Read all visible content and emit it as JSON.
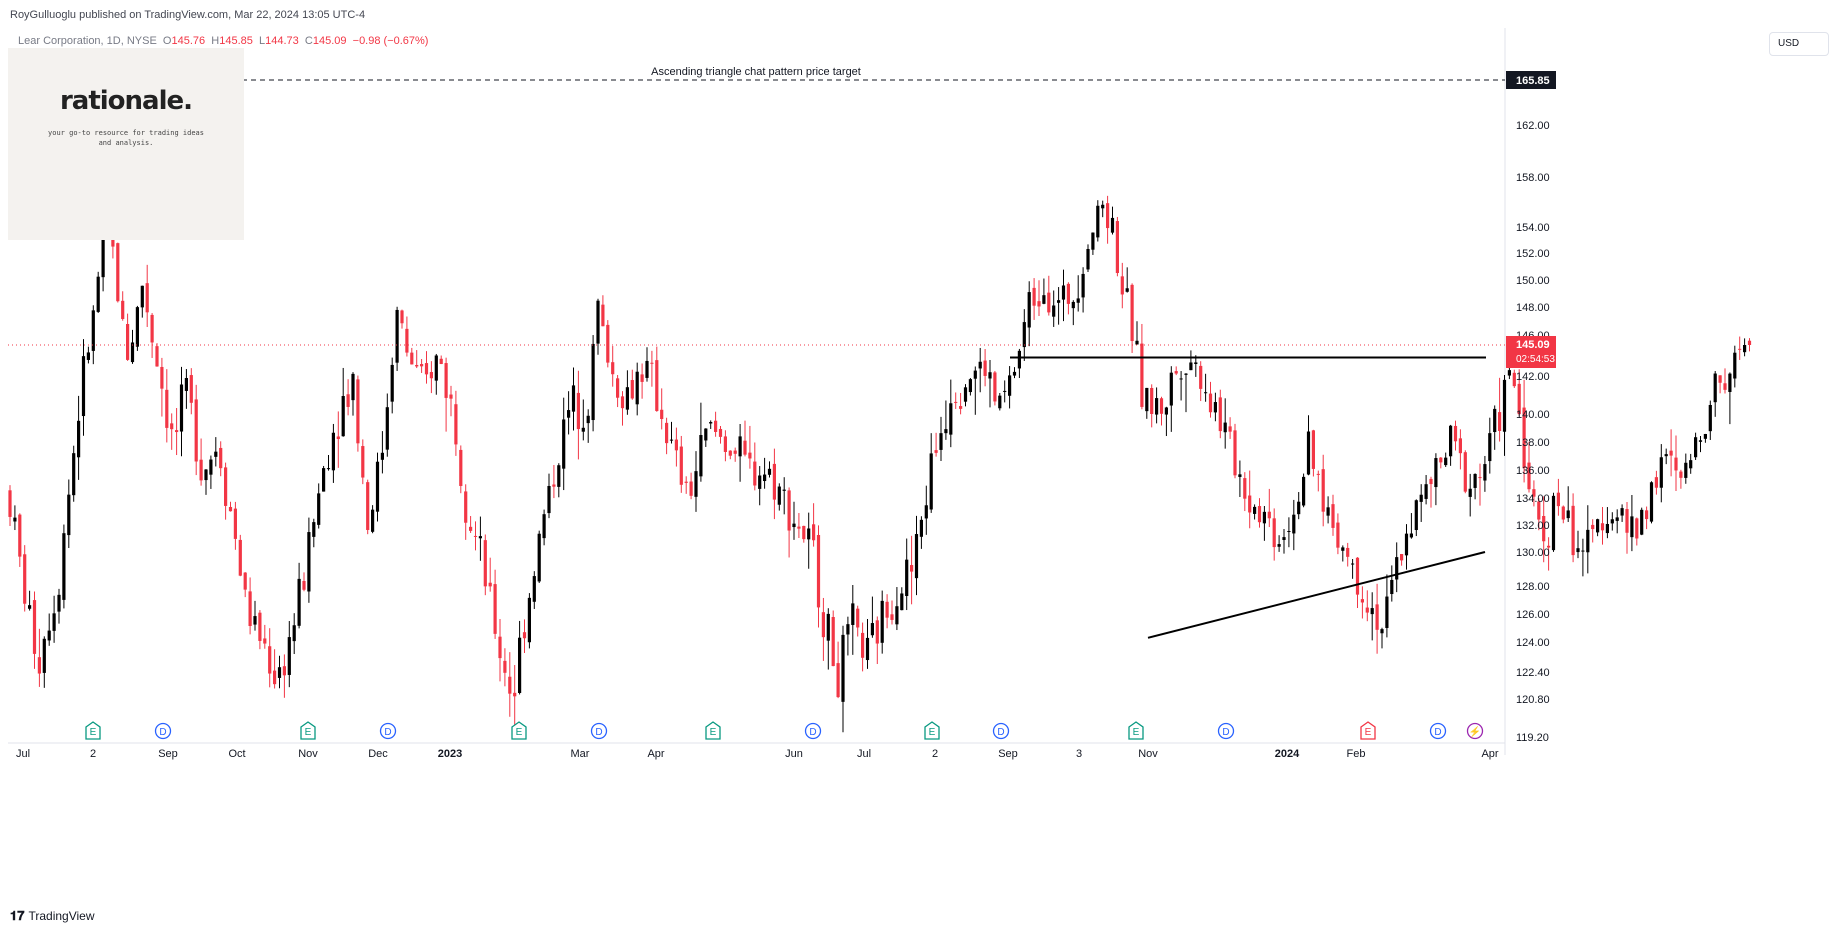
{
  "header": {
    "publisher_text": "RoyGulluoglu published on TradingView.com, Mar 22, 2024 13:05 UTC-4"
  },
  "legend": {
    "symbol": "Lear Corporation, 1D, NYSE",
    "open_label": "O",
    "open": "145.76",
    "high_label": "H",
    "high": "145.85",
    "low_label": "L",
    "low": "144.73",
    "close_label": "C",
    "close": "145.09",
    "change": "−0.98 (−0.67%)"
  },
  "watermark": {
    "brand": "rationale.",
    "tagline": "your go-to resource for trading ideas and analysis."
  },
  "currency_button": "USD",
  "footer": {
    "brand": "TradingView"
  },
  "colors": {
    "up": "#000000",
    "down": "#f23645",
    "current_price": "#f23645",
    "axis_text": "#131722"
  },
  "chart_data": {
    "type": "candlestick",
    "title": "",
    "xlabel": "",
    "ylabel": "",
    "ylim": [
      119.2,
      168.0
    ],
    "x_tick_labels": [
      "Jul",
      "2",
      "Sep",
      "Oct",
      "Nov",
      "Dec",
      "2023",
      "Mar",
      "Apr",
      "Jun",
      "Jul",
      "2",
      "Sep",
      "3",
      "Nov",
      "2024",
      "Feb",
      "Apr"
    ],
    "y_tick_labels": [
      "165.85",
      "162.00",
      "158.00",
      "154.00",
      "152.00",
      "150.00",
      "148.00",
      "146.00",
      "145.09",
      "142.00",
      "140.00",
      "138.00",
      "136.00",
      "134.00",
      "132.00",
      "130.00",
      "128.00",
      "126.00",
      "124.00",
      "122.40",
      "120.80",
      "119.20"
    ],
    "price_tag": {
      "value": 145.09,
      "label": "145.09",
      "countdown": "02:54:53"
    },
    "target_line": {
      "value": 165.85,
      "label": "Ascending triangle chat pattern price target"
    },
    "resistance_line": {
      "value": 143.85,
      "start": "2023-08",
      "end": "2024-03"
    },
    "support_line": {
      "from": {
        "date": "2023-11",
        "value": 124.3
      },
      "to": {
        "date": "2024-03",
        "value": 130.0
      }
    },
    "events": [
      {
        "letter": "E",
        "kind": "earnings"
      },
      {
        "letter": "D",
        "kind": "dividend"
      },
      {
        "letter": "E",
        "kind": "earnings"
      },
      {
        "letter": "D",
        "kind": "dividend"
      },
      {
        "letter": "E",
        "kind": "earnings"
      },
      {
        "letter": "D",
        "kind": "dividend"
      },
      {
        "letter": "E",
        "kind": "earnings"
      },
      {
        "letter": "D",
        "kind": "dividend"
      },
      {
        "letter": "E",
        "kind": "earnings"
      },
      {
        "letter": "D",
        "kind": "dividend"
      },
      {
        "letter": "E",
        "kind": "earnings"
      },
      {
        "letter": "D",
        "kind": "dividend"
      },
      {
        "letter": "E",
        "kind": "earnings-upcoming"
      },
      {
        "letter": "D",
        "kind": "dividend"
      },
      {
        "letter": "⚡",
        "kind": "split"
      }
    ],
    "price_path": [
      [
        0,
        134.5
      ],
      [
        15,
        128.0
      ],
      [
        30,
        123.0
      ],
      [
        50,
        128.0
      ],
      [
        70,
        140.0
      ],
      [
        85,
        147.0
      ],
      [
        95,
        153.0
      ],
      [
        100,
        155.5
      ],
      [
        108,
        150.0
      ],
      [
        120,
        144.0
      ],
      [
        135,
        150.0
      ],
      [
        150,
        143.0
      ],
      [
        165,
        138.0
      ],
      [
        180,
        141.0
      ],
      [
        195,
        136.0
      ],
      [
        210,
        138.0
      ],
      [
        225,
        132.0
      ],
      [
        240,
        126.0
      ],
      [
        255,
        124.0
      ],
      [
        270,
        122.0
      ],
      [
        285,
        125.0
      ],
      [
        300,
        130.0
      ],
      [
        315,
        136.0
      ],
      [
        330,
        140.0
      ],
      [
        345,
        142.0
      ],
      [
        360,
        132.0
      ],
      [
        375,
        138.0
      ],
      [
        390,
        148.0
      ],
      [
        400,
        144.0
      ],
      [
        415,
        141.0
      ],
      [
        430,
        144.0
      ],
      [
        445,
        140.0
      ],
      [
        460,
        133.0
      ],
      [
        475,
        129.0
      ],
      [
        490,
        124.0
      ],
      [
        505,
        121.0
      ],
      [
        520,
        127.0
      ],
      [
        540,
        134.0
      ],
      [
        560,
        140.0
      ],
      [
        580,
        141.0
      ],
      [
        590,
        148.0
      ],
      [
        605,
        142.0
      ],
      [
        620,
        141.0
      ],
      [
        635,
        143.0
      ],
      [
        650,
        141.0
      ],
      [
        665,
        137.0
      ],
      [
        680,
        134.0
      ],
      [
        700,
        139.0
      ],
      [
        720,
        138.0
      ],
      [
        740,
        136.0
      ],
      [
        760,
        136.0
      ],
      [
        775,
        134.0
      ],
      [
        790,
        132.0
      ],
      [
        805,
        130.0
      ],
      [
        815,
        126.0
      ],
      [
        830,
        122.0
      ],
      [
        845,
        125.0
      ],
      [
        860,
        123.0
      ],
      [
        875,
        126.0
      ],
      [
        890,
        128.0
      ],
      [
        905,
        129.0
      ],
      [
        925,
        137.0
      ],
      [
        945,
        142.0
      ],
      [
        960,
        142.0
      ],
      [
        975,
        143.0
      ],
      [
        990,
        140.0
      ],
      [
        1005,
        142.0
      ],
      [
        1020,
        148.0
      ],
      [
        1035,
        150.0
      ],
      [
        1050,
        148.0
      ],
      [
        1065,
        149.0
      ],
      [
        1080,
        153.0
      ],
      [
        1095,
        156.0
      ],
      [
        1105,
        154.0
      ],
      [
        1115,
        149.0
      ],
      [
        1125,
        146.0
      ],
      [
        1135,
        141.0
      ],
      [
        1150,
        140.0
      ],
      [
        1165,
        142.0
      ],
      [
        1180,
        144.0
      ],
      [
        1195,
        142.0
      ],
      [
        1210,
        140.0
      ],
      [
        1225,
        137.0
      ],
      [
        1240,
        134.0
      ],
      [
        1255,
        133.0
      ],
      [
        1270,
        131.0
      ],
      [
        1285,
        133.0
      ],
      [
        1300,
        137.0
      ],
      [
        1315,
        134.0
      ],
      [
        1330,
        131.0
      ],
      [
        1345,
        129.0
      ],
      [
        1360,
        127.0
      ],
      [
        1375,
        125.0
      ],
      [
        1385,
        128.0
      ],
      [
        1400,
        132.0
      ],
      [
        1415,
        134.0
      ],
      [
        1430,
        136.0
      ],
      [
        1445,
        138.0
      ],
      [
        1460,
        135.0
      ],
      [
        1475,
        136.0
      ],
      [
        1490,
        140.0
      ],
      [
        1505,
        142.0
      ],
      [
        1512,
        140.0
      ],
      [
        1522,
        134.0
      ],
      [
        1535,
        131.0
      ],
      [
        1550,
        134.0
      ],
      [
        1565,
        131.0
      ],
      [
        1580,
        130.0
      ],
      [
        1595,
        133.0
      ],
      [
        1610,
        133.0
      ],
      [
        1625,
        131.0
      ],
      [
        1640,
        134.0
      ],
      [
        1655,
        137.0
      ],
      [
        1670,
        135.0
      ],
      [
        1685,
        137.0
      ],
      [
        1700,
        141.0
      ],
      [
        1715,
        142.0
      ],
      [
        1725,
        143.0
      ],
      [
        1733,
        145.8
      ],
      [
        1738,
        145.09
      ]
    ]
  }
}
